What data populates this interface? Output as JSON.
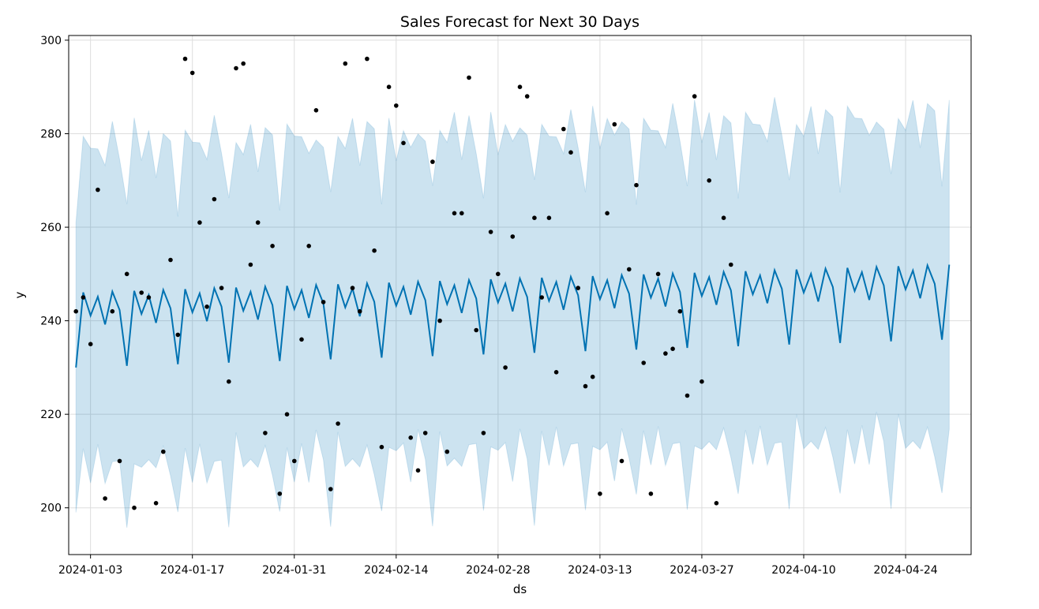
{
  "chart_data": {
    "type": "line",
    "title": "Sales Forecast for Next 30 Days",
    "xlabel": "ds",
    "ylabel": "y",
    "x_range": [
      "2023-12-31",
      "2024-05-03"
    ],
    "ylim": [
      190,
      301
    ],
    "x_ticks": [
      "2024-01-03",
      "2024-01-17",
      "2024-01-31",
      "2024-02-14",
      "2024-02-28",
      "2024-03-13",
      "2024-03-27",
      "2024-04-10",
      "2024-04-24"
    ],
    "y_ticks": [
      200,
      220,
      240,
      260,
      280,
      300
    ],
    "grid": true,
    "colors": {
      "forecast_line": "#0072b2",
      "uncertainty_band": "#0072b2",
      "observed_points": "#000000",
      "grid": "#dddddd"
    },
    "forecast": {
      "start": "2024-01-01",
      "end": "2024-04-30",
      "base_start": 242.0,
      "base_end": 248.0,
      "weekly_offsets": [
        -12,
        4,
        -1,
        3,
        -3,
        4,
        0
      ],
      "band_halfwidth": 34
    },
    "observed_start": "2024-01-01",
    "observed": [
      242,
      245,
      235,
      268,
      202,
      242,
      210,
      250,
      200,
      246,
      245,
      201,
      212,
      253,
      237,
      296,
      293,
      261,
      243,
      266,
      247,
      227,
      294,
      295,
      252,
      261,
      216,
      256,
      203,
      220,
      210,
      236,
      256,
      285,
      244,
      204,
      218,
      295,
      247,
      242,
      296,
      255,
      213,
      290,
      286,
      278,
      215,
      208,
      216,
      274,
      240,
      212,
      263,
      263,
      292,
      238,
      216,
      259,
      250,
      230,
      258,
      290,
      288,
      262,
      245,
      262,
      229,
      281,
      276,
      247,
      226,
      228,
      203,
      263,
      282,
      210,
      251,
      269,
      231,
      203,
      250,
      233,
      234,
      242,
      224,
      288,
      227,
      270,
      201,
      262,
      252
    ]
  }
}
